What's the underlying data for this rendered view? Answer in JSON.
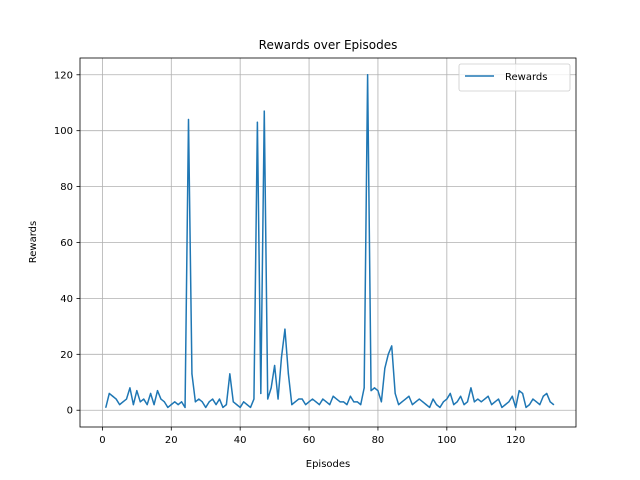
{
  "chart_data": {
    "type": "line",
    "title": "Rewards over Episodes",
    "xlabel": "Episodes",
    "ylabel": "Rewards",
    "xlim": [
      -6.5,
      137.5
    ],
    "ylim": [
      -6,
      126
    ],
    "xticks": [
      0,
      20,
      40,
      60,
      80,
      100,
      120
    ],
    "yticks": [
      0,
      20,
      40,
      60,
      80,
      100,
      120
    ],
    "grid": true,
    "legend_position": "top-right",
    "series": [
      {
        "name": "Rewards",
        "color": "#1f77b4",
        "x": [
          1,
          2,
          3,
          4,
          5,
          6,
          7,
          8,
          9,
          10,
          11,
          12,
          13,
          14,
          15,
          16,
          17,
          18,
          19,
          20,
          21,
          22,
          23,
          24,
          25,
          26,
          27,
          28,
          29,
          30,
          31,
          32,
          33,
          34,
          35,
          36,
          37,
          38,
          39,
          40,
          41,
          42,
          43,
          44,
          45,
          46,
          47,
          48,
          49,
          50,
          51,
          52,
          53,
          54,
          55,
          56,
          57,
          58,
          59,
          60,
          61,
          62,
          63,
          64,
          65,
          66,
          67,
          68,
          69,
          70,
          71,
          72,
          73,
          74,
          75,
          76,
          77,
          78,
          79,
          80,
          81,
          82,
          83,
          84,
          85,
          86,
          87,
          88,
          89,
          90,
          91,
          92,
          93,
          94,
          95,
          96,
          97,
          98,
          99,
          100,
          101,
          102,
          103,
          104,
          105,
          106,
          107,
          108,
          109,
          110,
          111,
          112,
          113,
          114,
          115,
          116,
          117,
          118,
          119,
          120,
          121,
          122,
          123,
          124,
          125,
          126,
          127,
          128,
          129,
          130,
          131
        ],
        "y": [
          1,
          6,
          5,
          4,
          2,
          3,
          4,
          8,
          2,
          7,
          3,
          4,
          2,
          6,
          2,
          7,
          4,
          3,
          1,
          2,
          3,
          2,
          3,
          1,
          104,
          13,
          3,
          4,
          3,
          1,
          3,
          4,
          2,
          4,
          1,
          2,
          13,
          3,
          2,
          1,
          3,
          2,
          1,
          4,
          103,
          6,
          107,
          4,
          8,
          16,
          4,
          19,
          29,
          13,
          2,
          3,
          4,
          4,
          2,
          3,
          4,
          3,
          2,
          4,
          3,
          2,
          5,
          4,
          3,
          3,
          2,
          5,
          3,
          3,
          2,
          8,
          120,
          7,
          8,
          7,
          3,
          15,
          20,
          23,
          6,
          2,
          3,
          4,
          5,
          2,
          3,
          4,
          3,
          2,
          1,
          4,
          2,
          1,
          3,
          4,
          6,
          2,
          3,
          5,
          2,
          3,
          8,
          3,
          4,
          3,
          4,
          5,
          2,
          3,
          4,
          1,
          2,
          3,
          5,
          1,
          7,
          6,
          1,
          2,
          4,
          3,
          2,
          5,
          6,
          3,
          2
        ]
      }
    ]
  }
}
